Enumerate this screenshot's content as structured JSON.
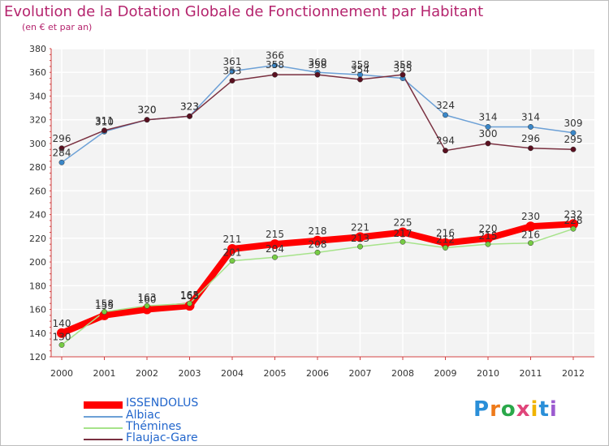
{
  "chart_data": {
    "type": "line",
    "title": "Evolution de la Dotation Globale de Fonctionnement par Habitant",
    "subtitle": "(en € et par an)",
    "x": [
      "2000",
      "2001",
      "2002",
      "2003",
      "2004",
      "2005",
      "2006",
      "2007",
      "2008",
      "2009",
      "2010",
      "2011",
      "2012"
    ],
    "ylim": [
      120,
      380
    ],
    "yticks": [
      120,
      140,
      160,
      180,
      200,
      220,
      240,
      260,
      280,
      300,
      320,
      340,
      360,
      380
    ],
    "grid": true,
    "series": [
      {
        "name": "ISSENDOLUS",
        "color": "#ff0000",
        "values": [
          140,
          155,
          160,
          163,
          211,
          215,
          218,
          221,
          225,
          216,
          220,
          230,
          232
        ]
      },
      {
        "name": "Albiac",
        "color": "#6ca0d6",
        "values": [
          284,
          310,
          320,
          323,
          361,
          366,
          360,
          358,
          355,
          324,
          314,
          314,
          309
        ]
      },
      {
        "name": "Thémines",
        "color": "#a6e38a",
        "values": [
          130,
          158,
          163,
          165,
          201,
          204,
          208,
          213,
          217,
          212,
          215,
          216,
          228
        ]
      },
      {
        "name": "Flaujac-Gare",
        "color": "#7a3040",
        "values": [
          296,
          311,
          320,
          323,
          353,
          358,
          358,
          354,
          358,
          294,
          300,
          296,
          295
        ]
      }
    ]
  },
  "logo": {
    "text": "Proxiti",
    "letters": [
      "P",
      "r",
      "o",
      "x",
      "i",
      "t",
      "i"
    ]
  }
}
